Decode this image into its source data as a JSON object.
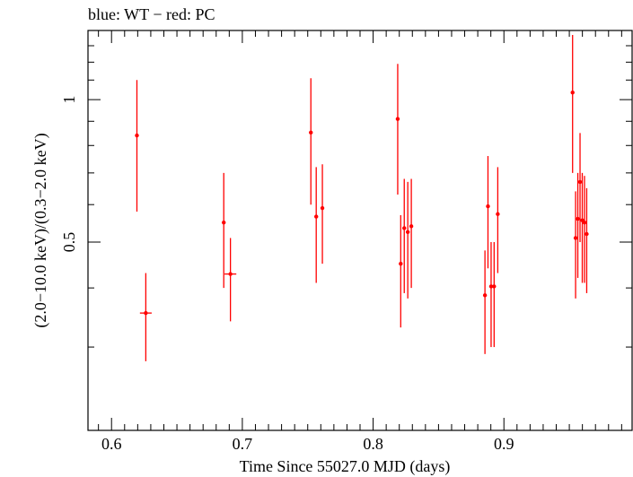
{
  "chart_data": {
    "type": "scatter",
    "title": "blue: WT − red: PC",
    "xlabel": "Time Since 55027.0 MJD (days)",
    "ylabel": "(2.0−10.0 keV)/(0.3−2.0 keV)",
    "xlim": [
      0.582,
      0.998
    ],
    "ylim": [
      0.2,
      1.4
    ],
    "grid": false,
    "x_ticks": [
      {
        "value": 0.6,
        "label": "0.6"
      },
      {
        "value": 0.7,
        "label": "0.7"
      },
      {
        "value": 0.8,
        "label": "0.8"
      },
      {
        "value": 0.9,
        "label": "0.9"
      }
    ],
    "y_ticks": [
      {
        "value": 0.5,
        "label": "0.5"
      },
      {
        "value": 1.0,
        "label": "1"
      }
    ],
    "series": [
      {
        "name": "PC",
        "color": "#ff0000",
        "points": [
          {
            "x": 0.6194,
            "y": 0.84,
            "ylo": 0.58,
            "yhi": 1.1
          },
          {
            "x": 0.6262,
            "y": 0.354,
            "ylo": 0.28,
            "yhi": 0.43,
            "xerr": 0.0045
          },
          {
            "x": 0.6858,
            "y": 0.55,
            "ylo": 0.4,
            "yhi": 0.7
          },
          {
            "x": 0.6909,
            "y": 0.428,
            "ylo": 0.34,
            "yhi": 0.51,
            "xerr": 0.0045
          },
          {
            "x": 0.7524,
            "y": 0.852,
            "ylo": 0.6,
            "yhi": 1.11
          },
          {
            "x": 0.7565,
            "y": 0.566,
            "ylo": 0.41,
            "yhi": 0.72
          },
          {
            "x": 0.7612,
            "y": 0.59,
            "ylo": 0.45,
            "yhi": 0.73
          },
          {
            "x": 0.8188,
            "y": 0.91,
            "ylo": 0.63,
            "yhi": 1.19
          },
          {
            "x": 0.8211,
            "y": 0.45,
            "ylo": 0.33,
            "yhi": 0.57
          },
          {
            "x": 0.8238,
            "y": 0.535,
            "ylo": 0.39,
            "yhi": 0.68
          },
          {
            "x": 0.8265,
            "y": 0.525,
            "ylo": 0.38,
            "yhi": 0.67
          },
          {
            "x": 0.8292,
            "y": 0.54,
            "ylo": 0.4,
            "yhi": 0.68
          },
          {
            "x": 0.8855,
            "y": 0.386,
            "ylo": 0.29,
            "yhi": 0.48
          },
          {
            "x": 0.8878,
            "y": 0.595,
            "ylo": 0.44,
            "yhi": 0.76
          },
          {
            "x": 0.8902,
            "y": 0.403,
            "ylo": 0.3,
            "yhi": 0.5
          },
          {
            "x": 0.8925,
            "y": 0.403,
            "ylo": 0.3,
            "yhi": 0.5
          },
          {
            "x": 0.8953,
            "y": 0.573,
            "ylo": 0.43,
            "yhi": 0.72
          },
          {
            "x": 0.9525,
            "y": 1.035,
            "ylo": 0.7,
            "yhi": 1.37
          },
          {
            "x": 0.9548,
            "y": 0.51,
            "ylo": 0.38,
            "yhi": 0.64
          },
          {
            "x": 0.9565,
            "y": 0.56,
            "ylo": 0.42,
            "yhi": 0.7
          },
          {
            "x": 0.9582,
            "y": 0.67,
            "ylo": 0.5,
            "yhi": 0.85
          },
          {
            "x": 0.9599,
            "y": 0.556,
            "ylo": 0.41,
            "yhi": 0.7
          },
          {
            "x": 0.9616,
            "y": 0.55,
            "ylo": 0.41,
            "yhi": 0.69
          },
          {
            "x": 0.9633,
            "y": 0.52,
            "ylo": 0.39,
            "yhi": 0.65
          }
        ]
      }
    ]
  }
}
